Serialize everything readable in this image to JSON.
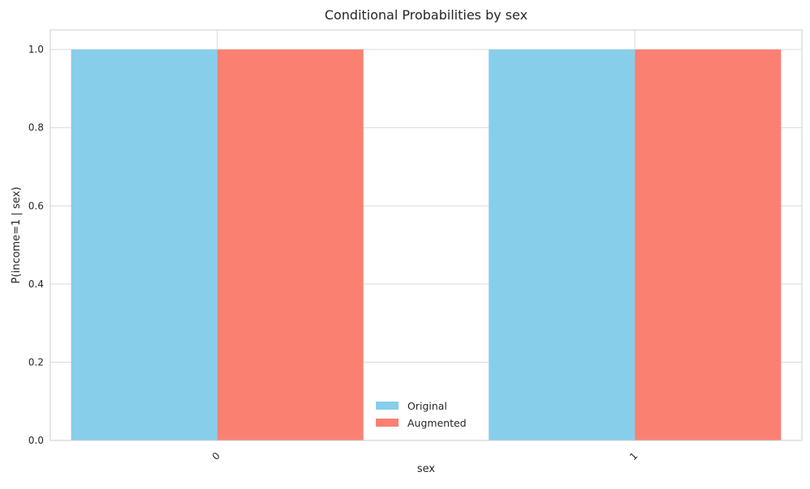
{
  "chart_data": {
    "type": "bar",
    "title": "Conditional Probabilities by sex",
    "xlabel": "sex",
    "ylabel": "P(income=1 | sex)",
    "categories": [
      "0",
      "1"
    ],
    "series": [
      {
        "name": "Original",
        "values": [
          1.0,
          1.0
        ],
        "color": "#87CEEB"
      },
      {
        "name": "Augmented",
        "values": [
          1.0,
          1.0
        ],
        "color": "#FA8072"
      }
    ],
    "ylim": [
      0,
      1.05
    ],
    "yticks": [
      "0.0",
      "0.2",
      "0.4",
      "0.6",
      "0.8",
      "1.0"
    ],
    "grid": true,
    "legend_position": "bottom-center"
  }
}
